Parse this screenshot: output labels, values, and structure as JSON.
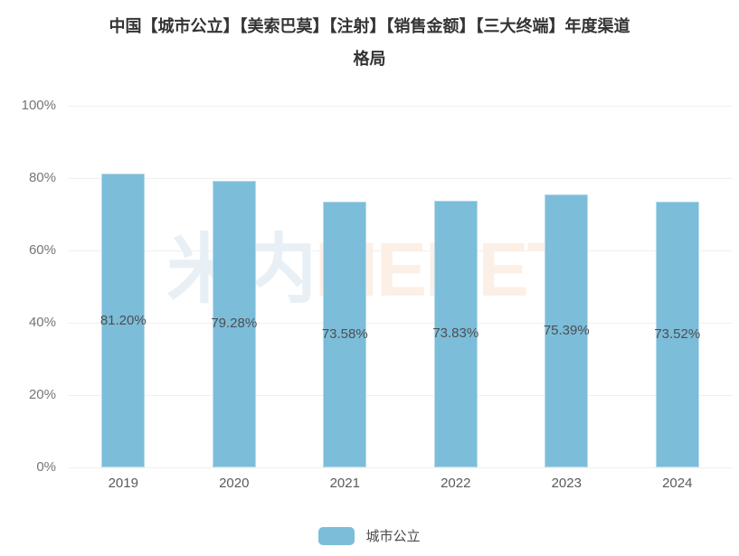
{
  "header": {
    "line1": "中国【城市公立】【美索巴莫】【注射】【销售金额】【三大终端】年度渠道",
    "line2": "格局"
  },
  "watermark": {
    "cn": "米内",
    "en": "MENET"
  },
  "legend": {
    "label": "城市公立"
  },
  "colors": {
    "bar": "#7cbdda",
    "grid": "#f0f0f1",
    "title_text": "#333333",
    "y_tick_text": "#767676",
    "x_tick_text": "#5a5a5a",
    "value_text": "#4e4e4e",
    "legend_text": "#4a4a4a",
    "watermark_cn": "#e8f0f5",
    "watermark_en": "#fcefe6",
    "background": "#ffffff"
  },
  "chart_data": {
    "type": "bar",
    "title": "中国【城市公立】【美索巴莫】【注射】【销售金额】【三大终端】年度渠道格局",
    "series_name": "城市公立",
    "categories": [
      "2019",
      "2020",
      "2021",
      "2022",
      "2023",
      "2024"
    ],
    "values": [
      81.2,
      79.28,
      73.58,
      73.83,
      75.39,
      73.52
    ],
    "value_labels": [
      "81.20%",
      "79.28%",
      "73.58%",
      "73.83%",
      "75.39%",
      "73.52%"
    ],
    "xlabel": "",
    "ylabel": "",
    "ylim": [
      0,
      100
    ],
    "yticks": [
      0,
      20,
      40,
      60,
      80,
      100
    ],
    "ytick_labels": [
      "0%",
      "20%",
      "40%",
      "60%",
      "80%",
      "100%"
    ],
    "grid": "horizontal",
    "legend_position": "bottom",
    "value_label_position": "middle-of-bar"
  }
}
